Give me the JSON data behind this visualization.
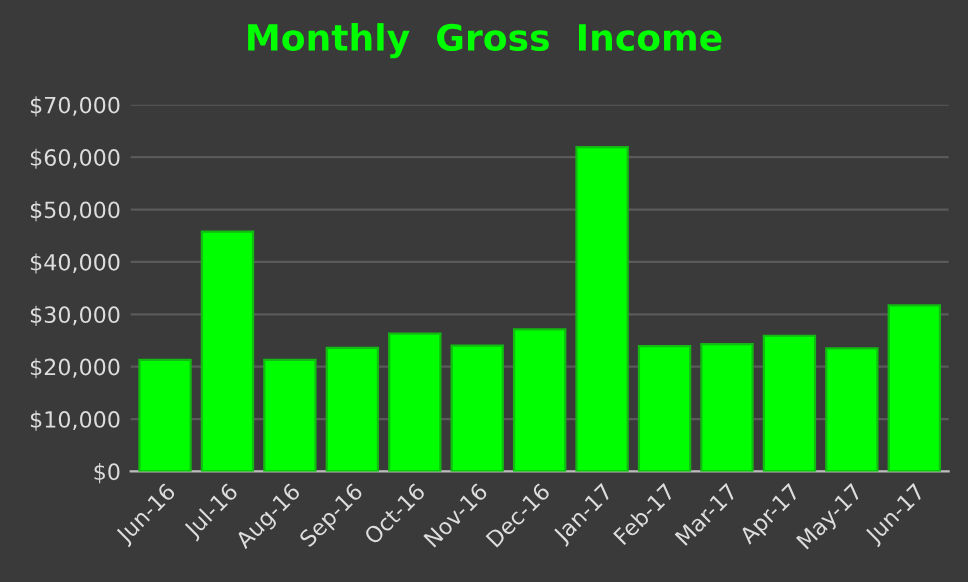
{
  "chart_data": {
    "type": "bar",
    "title": "Monthly  Gross  Income",
    "categories": [
      "Jun-16",
      "Jul-16",
      "Aug-16",
      "Sep-16",
      "Oct-16",
      "Nov-16",
      "Dec-16",
      "Jan-17",
      "Feb-17",
      "Mar-17",
      "Apr-17",
      "May-17",
      "Jun-17"
    ],
    "values": [
      21300,
      45800,
      21300,
      23600,
      26300,
      24000,
      27100,
      61900,
      23900,
      24300,
      25900,
      23500,
      31700
    ],
    "color": "#00ff00",
    "ylim": [
      0,
      70000
    ],
    "yticks": [
      {
        "value": 0,
        "label": "$0"
      },
      {
        "value": 10000,
        "label": "$10,000"
      },
      {
        "value": 20000,
        "label": "$20,000"
      },
      {
        "value": 30000,
        "label": "$30,000"
      },
      {
        "value": 40000,
        "label": "$40,000"
      },
      {
        "value": 50000,
        "label": "$50,000"
      },
      {
        "value": 60000,
        "label": "$60,000"
      },
      {
        "value": 70000,
        "label": "$70,000"
      }
    ],
    "grid": "y",
    "legend": false
  }
}
